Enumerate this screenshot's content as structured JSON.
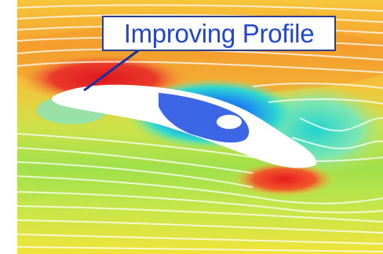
{
  "annotation": {
    "label": "Improving Profile",
    "text_color": "#1f47d1",
    "border_color": "#2b3d8f"
  },
  "visualization": {
    "subject": "airfoil-flow-field",
    "colors": {
      "high": "#e8232b",
      "mid_high": "#f5a623",
      "mid": "#f2e11c",
      "mid_low": "#9ee23a",
      "low_mid": "#22d3c6",
      "low": "#1644d8",
      "streamline": "#ffffff",
      "airfoil": "#ffffff"
    }
  }
}
